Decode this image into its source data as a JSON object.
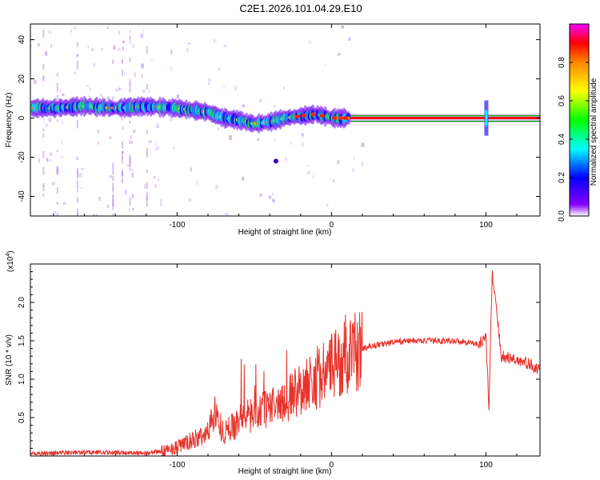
{
  "title": "C2E1.2026.101.04.29.E10",
  "chart_data": [
    {
      "type": "heatmap",
      "xlabel": "Height of straight line (km)",
      "ylabel": "Frequency (Hz)",
      "xlim": [
        -195,
        135
      ],
      "ylim": [
        -50,
        48
      ],
      "xticks": [
        -100,
        0,
        100
      ],
      "yticks": [
        40,
        20,
        0,
        -20,
        -40
      ],
      "colorbar": {
        "label": "Normalized spectral amplitude",
        "range": [
          0,
          1
        ],
        "ticks": [
          "0.0",
          "0.2",
          "0.4",
          "0.6",
          "0.8"
        ],
        "colors": [
          "#ffffff",
          "#8800ff",
          "#0000ff",
          "#00ffff",
          "#00ff00",
          "#ffff00",
          "#ff8800",
          "#ff0000",
          "#ff00ff"
        ]
      },
      "ridge": {
        "x": [
          -195,
          -180,
          -160,
          -140,
          -120,
          -100,
          -90,
          -80,
          -70,
          -60,
          -50,
          -40,
          -30,
          -20,
          -10,
          0,
          10,
          20,
          100,
          135
        ],
        "y": [
          5,
          5,
          6,
          5,
          6,
          5,
          4,
          3,
          0,
          -1,
          -3,
          -2,
          0,
          1,
          2,
          0,
          0,
          0,
          0,
          0
        ]
      },
      "colors": {
        "signal": "#ff0000",
        "noise": "#c8a0f0"
      }
    },
    {
      "type": "line",
      "xlabel": "Height of straight line (km)",
      "ylabel": "SNR (10 * v/v)",
      "yscale_label": "(x10",
      "yscale_exp": "4",
      "xlim": [
        -195,
        135
      ],
      "ylim": [
        0,
        2.5
      ],
      "xticks": [
        -100,
        0,
        100
      ],
      "yticks": [
        0.5,
        1.0,
        1.5,
        2.0
      ],
      "series": [
        {
          "color": "#e8322a",
          "x": [
            -195,
            -160,
            -120,
            -110,
            -100,
            -90,
            -80,
            -76,
            -70,
            -60,
            -50,
            -40,
            -30,
            -20,
            -10,
            0,
            10,
            20,
            30,
            40,
            50,
            60,
            70,
            80,
            90,
            95,
            100,
            102,
            104,
            110,
            120,
            130,
            135
          ],
          "y": [
            0.03,
            0.05,
            0.04,
            0.06,
            0.12,
            0.2,
            0.3,
            0.6,
            0.3,
            0.45,
            0.55,
            0.65,
            0.7,
            0.9,
            1.0,
            1.15,
            1.3,
            1.4,
            1.45,
            1.48,
            1.5,
            1.5,
            1.5,
            1.5,
            1.48,
            1.45,
            1.55,
            0.6,
            2.4,
            1.3,
            1.25,
            1.18,
            1.1
          ]
        }
      ]
    }
  ]
}
